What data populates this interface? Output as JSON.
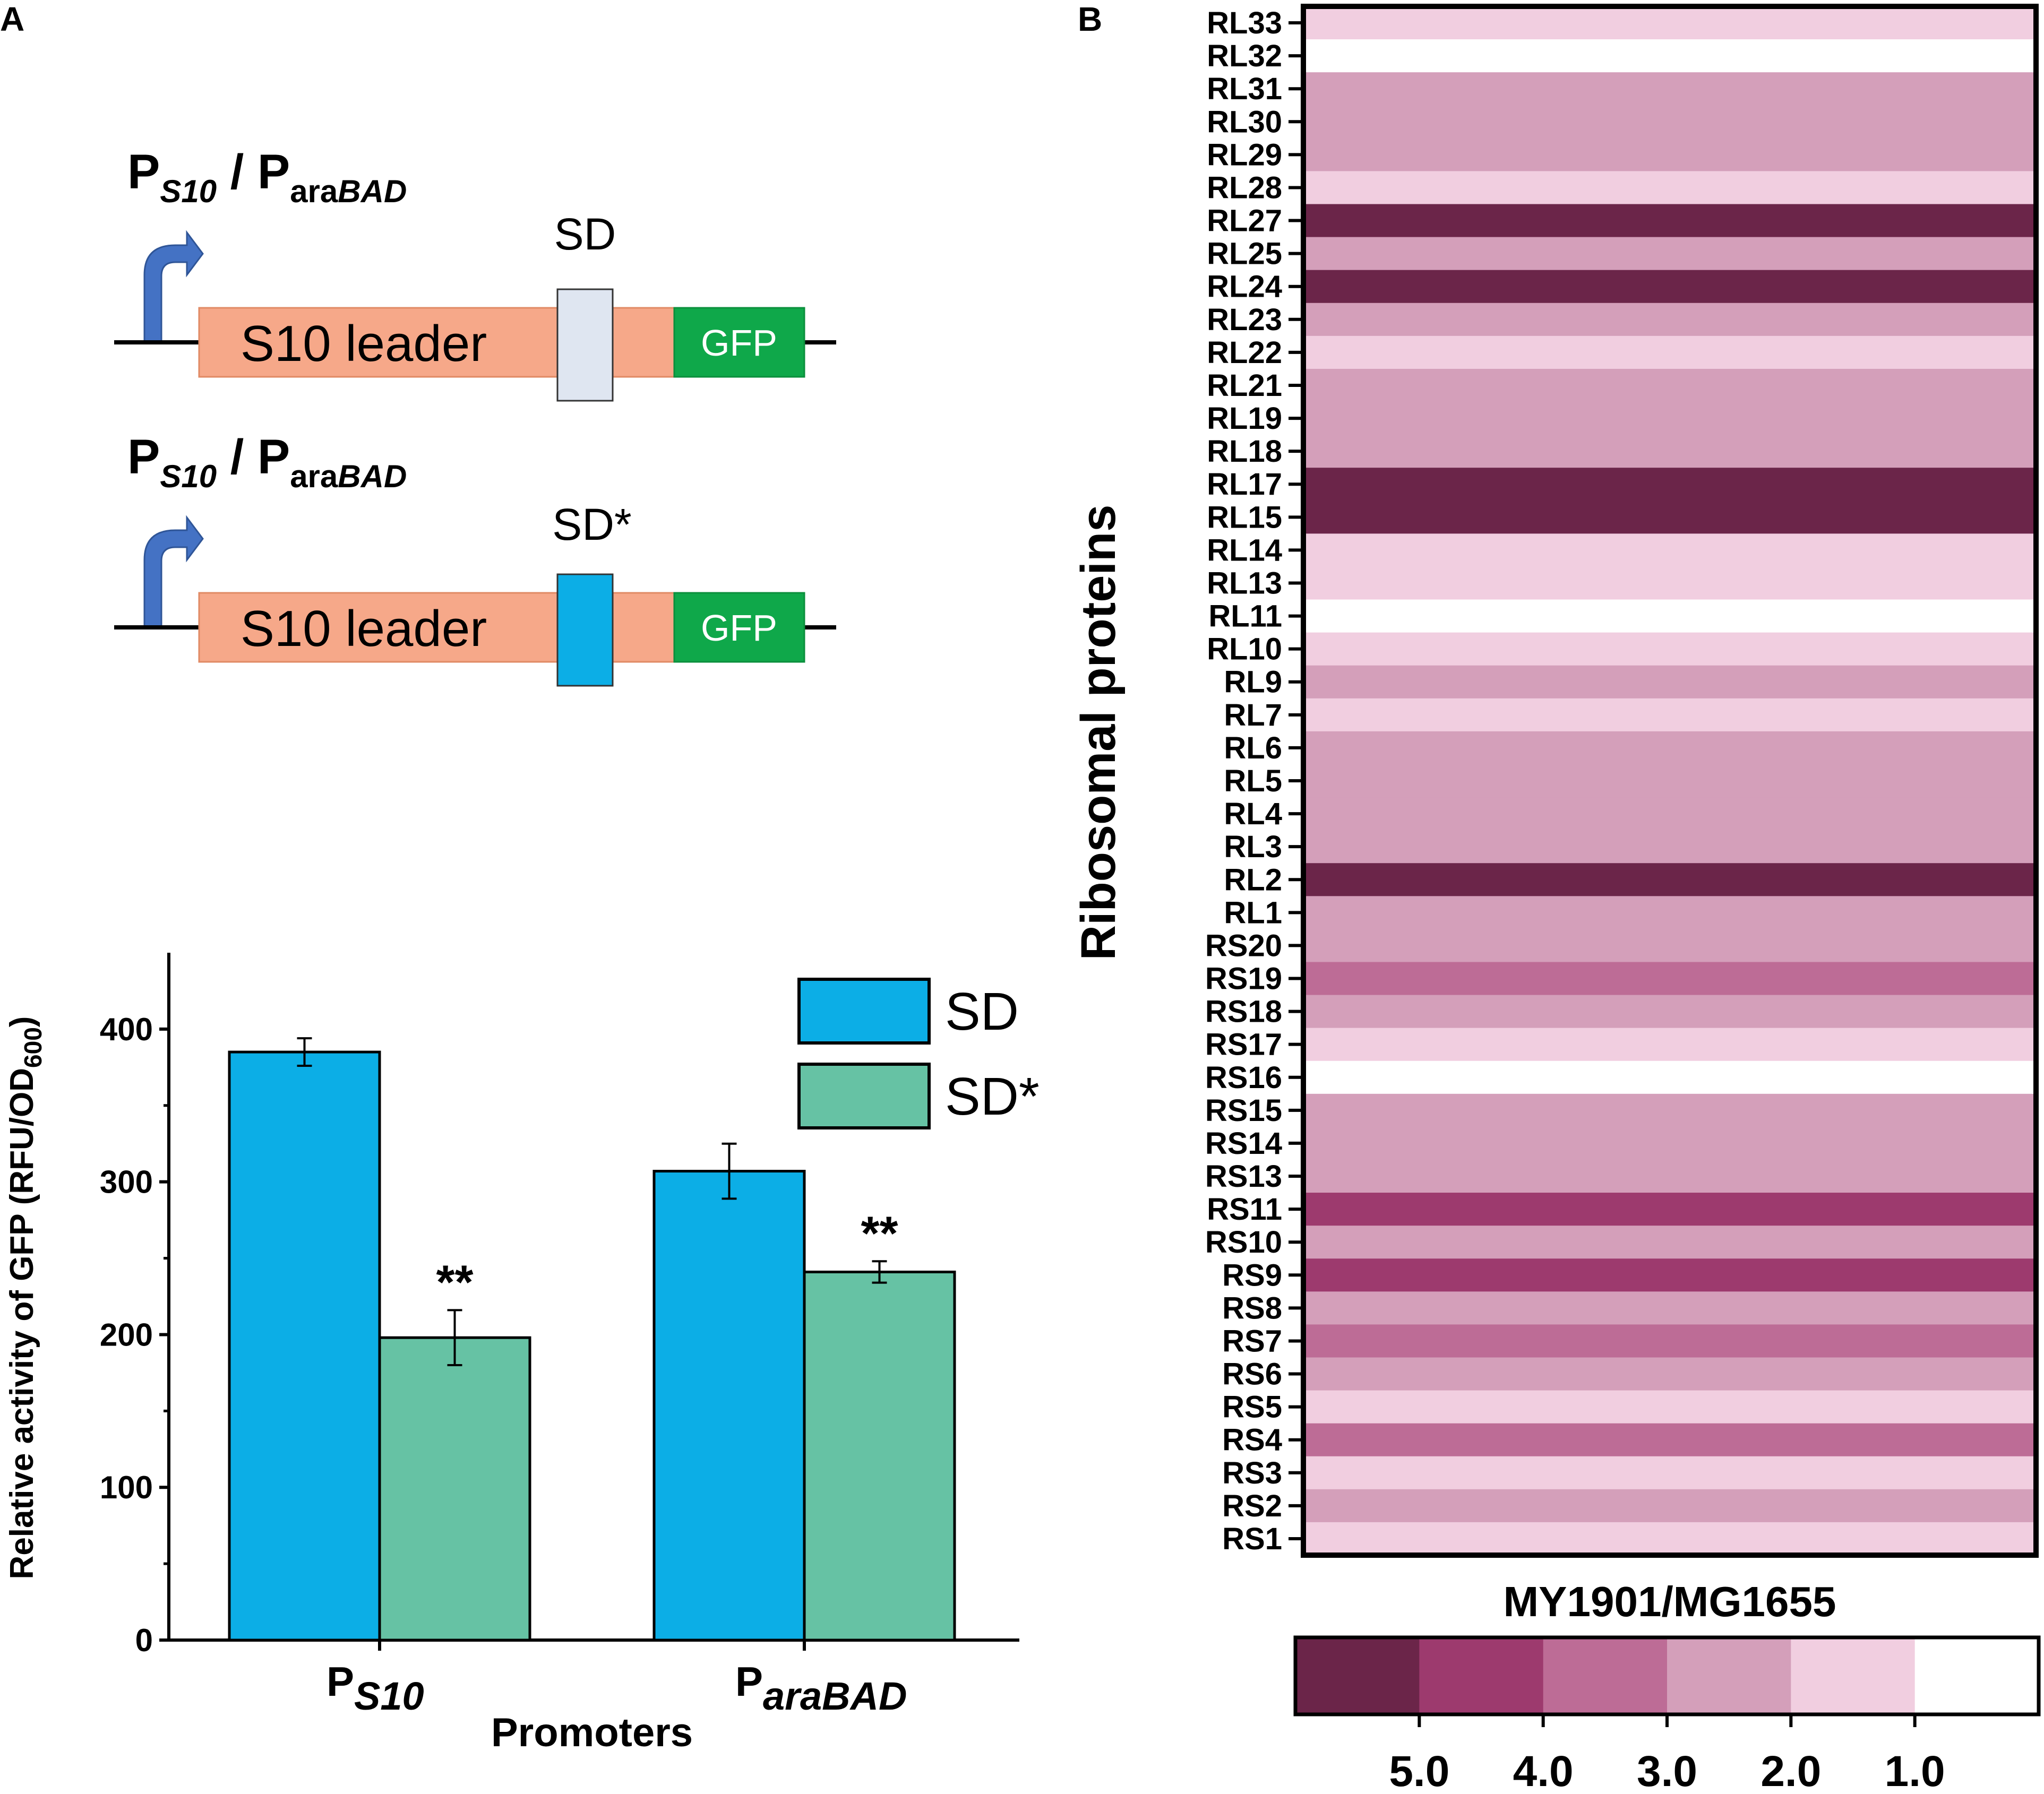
{
  "panelA": {
    "letter": "A",
    "diagram": {
      "constructs": [
        {
          "promoter_main": "P",
          "promoter_sub1": "S10",
          "sep": " / P",
          "promoter_sub2a": "ara",
          "promoter_sub2b": "BAD",
          "sd_label": "SD",
          "leader_label": "S10 leader",
          "reporter_label": "GFP"
        },
        {
          "promoter_main": "P",
          "promoter_sub1": "S10",
          "sep": " / P",
          "promoter_sub2a": "ara",
          "promoter_sub2b": "BAD",
          "sd_label": "SD*",
          "leader_label": "S10 leader",
          "reporter_label": "GFP"
        }
      ],
      "colors": {
        "leader": "#f6a889",
        "leader_edge": "#e08a64",
        "gfp": "#0fa84a",
        "sd_native": "#dfe6f1",
        "sd_mut": "#0caee6",
        "arrow": "#4472c4"
      }
    }
  },
  "chart_data": [
    {
      "type": "bar",
      "title": "",
      "categories": [
        "PS10",
        "ParaBAD"
      ],
      "category_labels": [
        {
          "main": "P",
          "sub": "S10"
        },
        {
          "main": "P",
          "sub": "araBAD"
        }
      ],
      "series": [
        {
          "name": "SD",
          "values": [
            385,
            307
          ],
          "errors": [
            9,
            18
          ],
          "color": "#0caee6"
        },
        {
          "name": "SD*",
          "values": [
            198,
            241
          ],
          "errors": [
            18,
            7
          ],
          "color": "#66c2a4"
        }
      ],
      "significance": [
        "**",
        "**"
      ],
      "xlabel": "Promoters",
      "ylabel": "Relative activity of GFP (RFU/OD600)",
      "ylabel_parts": {
        "main": "Relative activity of GFP (RFU/OD",
        "sub": "600",
        "end": ")"
      },
      "ylim": [
        0,
        450
      ],
      "yticks": [
        0,
        100,
        200,
        300,
        400
      ],
      "legend_position": "top-right"
    },
    {
      "type": "heatmap",
      "panel_letter": "B",
      "title": "MY1901/MG1655",
      "ylabel": "Ribosomal proteins",
      "rows": [
        "RL33",
        "RL32",
        "RL31",
        "RL30",
        "RL29",
        "RL28",
        "RL27",
        "RL25",
        "RL24",
        "RL23",
        "RL22",
        "RL21",
        "RL19",
        "RL18",
        "RL17",
        "RL15",
        "RL14",
        "RL13",
        "RL11",
        "RL10",
        "RL9",
        "RL7",
        "RL6",
        "RL5",
        "RL4",
        "RL3",
        "RL2",
        "RL1",
        "RS20",
        "RS19",
        "RS18",
        "RS17",
        "RS16",
        "RS15",
        "RS14",
        "RS13",
        "RS11",
        "RS10",
        "RS9",
        "RS8",
        "RS7",
        "RS6",
        "RS5",
        "RS4",
        "RS3",
        "RS2",
        "RS1"
      ],
      "values": [
        1.5,
        0.5,
        2.5,
        2.5,
        2.5,
        1.5,
        5.5,
        2.5,
        5.5,
        2.5,
        1.5,
        2.5,
        2.5,
        2.5,
        5.5,
        5.5,
        1.5,
        1.5,
        0.5,
        1.5,
        2.5,
        1.5,
        2.5,
        2.5,
        2.5,
        2.5,
        5.5,
        2.5,
        2.5,
        3.5,
        2.5,
        1.5,
        0.5,
        2.5,
        2.5,
        2.5,
        4.5,
        2.5,
        4.5,
        2.5,
        3.5,
        2.5,
        1.5,
        3.5,
        1.5,
        2.5,
        1.5
      ],
      "colorbar": {
        "bins": [
          {
            "min": 5.0,
            "max": 6.0,
            "color": "#6b2549"
          },
          {
            "min": 4.0,
            "max": 5.0,
            "color": "#9d3a6e"
          },
          {
            "min": 3.0,
            "max": 4.0,
            "color": "#bd6c96"
          },
          {
            "min": 2.0,
            "max": 3.0,
            "color": "#d49fba"
          },
          {
            "min": 1.0,
            "max": 2.0,
            "color": "#f1cee0"
          },
          {
            "min": 0.0,
            "max": 1.0,
            "color": "#ffffff"
          }
        ],
        "tick_labels": [
          "5.0",
          "4.0",
          "3.0",
          "2.0",
          "1.0"
        ]
      }
    }
  ]
}
